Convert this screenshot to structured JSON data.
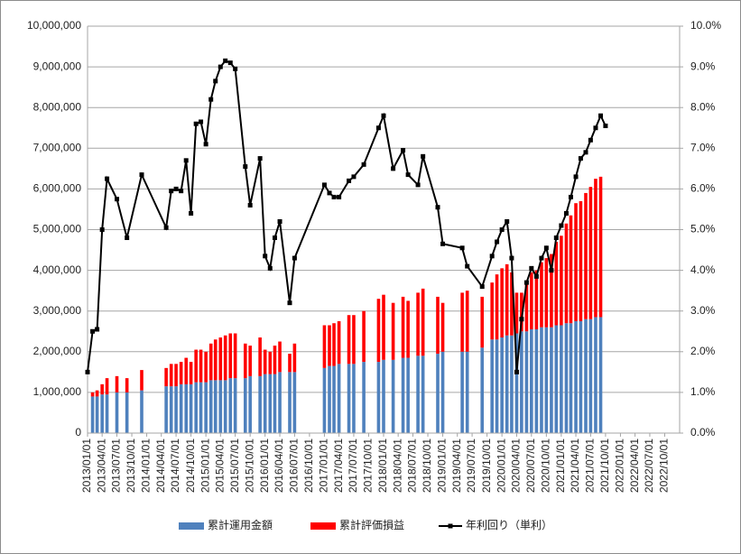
{
  "chart_data": {
    "type": "bar",
    "stacked": true,
    "grid": true,
    "x": [
      "2013/01/01",
      "2013/02/01",
      "2013/03/01",
      "2013/04/01",
      "2013/05/01",
      "2013/07/01",
      "2013/09/01",
      "2013/12/01",
      "2014/05/01",
      "2014/06/01",
      "2014/07/01",
      "2014/08/01",
      "2014/09/01",
      "2014/10/01",
      "2014/11/01",
      "2014/12/01",
      "2015/01/01",
      "2015/02/01",
      "2015/03/01",
      "2015/04/01",
      "2015/05/01",
      "2015/06/01",
      "2015/07/01",
      "2015/09/01",
      "2015/10/01",
      "2015/12/01",
      "2016/01/01",
      "2016/02/01",
      "2016/03/01",
      "2016/04/01",
      "2016/06/01",
      "2016/07/01",
      "2017/01/01",
      "2017/02/01",
      "2017/03/01",
      "2017/04/01",
      "2017/06/01",
      "2017/07/01",
      "2017/09/01",
      "2017/12/01",
      "2018/01/01",
      "2018/03/01",
      "2018/05/01",
      "2018/06/01",
      "2018/08/01",
      "2018/09/01",
      "2018/12/01",
      "2019/01/01",
      "2019/05/01",
      "2019/06/01",
      "2019/09/01",
      "2019/11/01",
      "2019/12/01",
      "2020/01/01",
      "2020/02/01",
      "2020/03/01",
      "2020/04/01",
      "2020/05/01",
      "2020/06/01",
      "2020/07/01",
      "2020/08/01",
      "2020/09/01",
      "2020/10/01",
      "2020/11/01",
      "2020/12/01",
      "2021/01/01",
      "2021/02/01",
      "2021/03/01",
      "2021/04/01",
      "2021/05/01",
      "2021/06/01",
      "2021/07/01",
      "2021/08/01",
      "2021/09/01",
      "2021/10/01"
    ],
    "series": [
      {
        "name": "累計運用金額",
        "type": "bar",
        "color": "#4f81bd",
        "axis": "y",
        "values": [
          null,
          900000,
          900000,
          950000,
          950000,
          1000000,
          1000000,
          1050000,
          1150000,
          1150000,
          1150000,
          1200000,
          1200000,
          1200000,
          1250000,
          1250000,
          1250000,
          1300000,
          1300000,
          1300000,
          1300000,
          1350000,
          1350000,
          1350000,
          1400000,
          1400000,
          1450000,
          1450000,
          1450000,
          1500000,
          1500000,
          1500000,
          1600000,
          1650000,
          1650000,
          1700000,
          1700000,
          1700000,
          1750000,
          1750000,
          1800000,
          1800000,
          1850000,
          1850000,
          1900000,
          1900000,
          1950000,
          2000000,
          2000000,
          2000000,
          2100000,
          2300000,
          2300000,
          2350000,
          2400000,
          2400000,
          2450000,
          2500000,
          2500000,
          2550000,
          2550000,
          2600000,
          2600000,
          2600000,
          2650000,
          2650000,
          2700000,
          2700000,
          2750000,
          2750000,
          2800000,
          2800000,
          2850000,
          2850000,
          null
        ]
      },
      {
        "name": "累計評価損益",
        "type": "bar",
        "color": "#ff0000",
        "axis": "y",
        "values": [
          null,
          100000,
          150000,
          250000,
          400000,
          400000,
          350000,
          500000,
          450000,
          550000,
          550000,
          550000,
          650000,
          550000,
          800000,
          800000,
          750000,
          900000,
          1000000,
          1050000,
          1100000,
          1100000,
          1100000,
          850000,
          750000,
          950000,
          600000,
          550000,
          700000,
          750000,
          450000,
          700000,
          1050000,
          1000000,
          1050000,
          1050000,
          1200000,
          1200000,
          1250000,
          1550000,
          1600000,
          1400000,
          1500000,
          1400000,
          1550000,
          1650000,
          1400000,
          1200000,
          1450000,
          1500000,
          1250000,
          1400000,
          1600000,
          1700000,
          1750000,
          1550000,
          1000000,
          950000,
          1200000,
          1400000,
          1450000,
          1600000,
          1700000,
          1800000,
          2050000,
          2200000,
          2450000,
          2650000,
          2900000,
          2950000,
          3100000,
          3250000,
          3400000,
          3450000,
          null
        ]
      },
      {
        "name": "年利回り（単利）",
        "type": "line",
        "color": "#000000",
        "axis": "y2",
        "values": [
          1.5,
          2.5,
          2.55,
          5.0,
          6.25,
          5.75,
          4.8,
          6.35,
          5.05,
          5.95,
          6.0,
          5.95,
          6.7,
          5.4,
          7.6,
          7.65,
          7.1,
          8.2,
          8.65,
          9.0,
          9.15,
          9.1,
          8.95,
          6.55,
          5.6,
          6.75,
          4.35,
          4.05,
          4.8,
          5.2,
          3.2,
          4.3,
          6.1,
          5.9,
          5.8,
          5.8,
          6.2,
          6.3,
          6.6,
          7.5,
          7.8,
          6.5,
          6.95,
          6.35,
          6.1,
          6.8,
          5.55,
          4.65,
          4.55,
          4.1,
          3.6,
          4.35,
          4.7,
          5.0,
          5.2,
          4.3,
          1.5,
          2.8,
          3.7,
          4.05,
          3.85,
          4.3,
          4.55,
          4.0,
          4.8,
          5.1,
          5.4,
          5.8,
          6.3,
          6.75,
          6.9,
          7.2,
          7.5,
          7.8,
          7.55
        ]
      }
    ],
    "xlim": [
      "2013/01/01",
      "2023/01/01"
    ],
    "xticks": [
      "2013/01/01",
      "2013/04/01",
      "2013/07/01",
      "2013/10/01",
      "2014/01/01",
      "2014/04/01",
      "2014/07/01",
      "2014/10/01",
      "2015/01/01",
      "2015/04/01",
      "2015/07/01",
      "2015/10/01",
      "2016/01/01",
      "2016/04/01",
      "2016/07/01",
      "2016/10/01",
      "2017/01/01",
      "2017/04/01",
      "2017/07/01",
      "2017/10/01",
      "2018/01/01",
      "2018/04/01",
      "2018/07/01",
      "2018/10/01",
      "2019/01/01",
      "2019/04/01",
      "2019/07/01",
      "2019/10/01",
      "2020/01/01",
      "2020/04/01",
      "2020/07/01",
      "2020/10/01",
      "2021/01/01",
      "2021/04/01",
      "2021/07/01",
      "2021/10/01",
      "2022/01/01",
      "2022/04/01",
      "2022/07/01",
      "2022/10/01"
    ],
    "ylim": [
      0,
      10000000
    ],
    "yticks": [
      0,
      {
        "value": 1000000,
        "label": "1,000,000"
      },
      {
        "value": 2000000,
        "label": "2,000,000"
      },
      {
        "value": 3000000,
        "label": "3,000,000"
      },
      {
        "value": 4000000,
        "label": "4,000,000"
      },
      {
        "value": 5000000,
        "label": "5,000,000"
      },
      {
        "value": 6000000,
        "label": "6,000,000"
      },
      {
        "value": 7000000,
        "label": "7,000,000"
      },
      {
        "value": 8000000,
        "label": "8,000,000"
      },
      {
        "value": 9000000,
        "label": "9,000,000"
      },
      {
        "value": 10000000,
        "label": "10,000,000"
      }
    ],
    "y2lim": [
      0,
      10
    ],
    "y2ticks": [
      {
        "value": 0,
        "label": "0.0%"
      },
      {
        "value": 1,
        "label": "1.0%"
      },
      {
        "value": 2,
        "label": "2.0%"
      },
      {
        "value": 3,
        "label": "3.0%"
      },
      {
        "value": 4,
        "label": "4.0%"
      },
      {
        "value": 5,
        "label": "5.0%"
      },
      {
        "value": 6,
        "label": "6.0%"
      },
      {
        "value": 7,
        "label": "7.0%"
      },
      {
        "value": 8,
        "label": "8.0%"
      },
      {
        "value": 9,
        "label": "9.0%"
      },
      {
        "value": 10,
        "label": "10.0%"
      }
    ]
  }
}
